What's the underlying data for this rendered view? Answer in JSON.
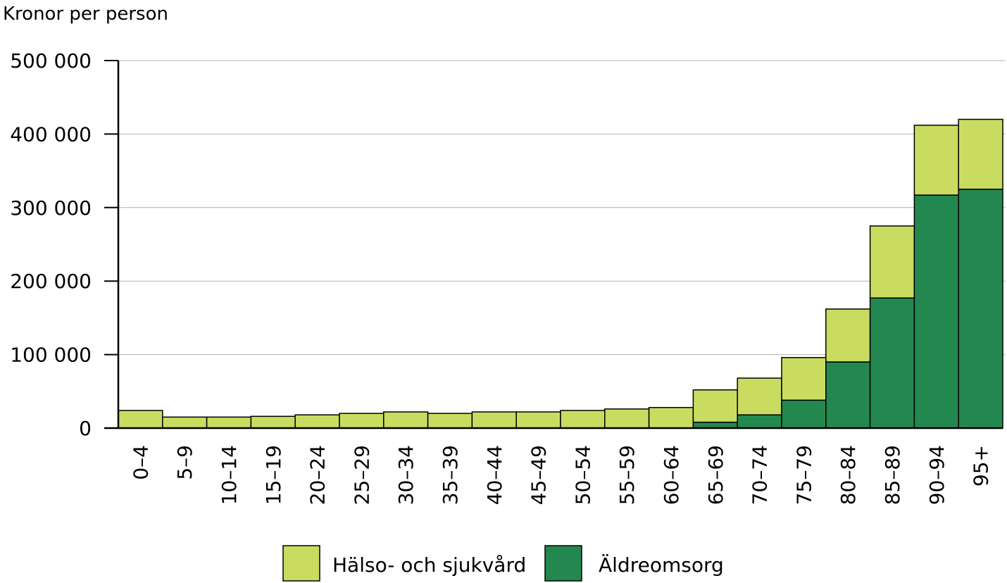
{
  "chart_data": {
    "type": "bar",
    "stacked": true,
    "ylabel": "Kronor per person",
    "ylim": [
      0,
      500000
    ],
    "yticks": [
      0,
      100000,
      200000,
      300000,
      400000,
      500000
    ],
    "ytick_labels": [
      "0",
      "100 000",
      "200 000",
      "300 000",
      "400 000",
      "500 000"
    ],
    "grid": true,
    "legend_position": "bottom",
    "categories": [
      "0–4",
      "5–9",
      "10–14",
      "15–19",
      "20–24",
      "25–29",
      "30–34",
      "35–39",
      "40–44",
      "45–49",
      "50–54",
      "55–59",
      "60–64",
      "65–69",
      "70–74",
      "75–79",
      "80–84",
      "85–89",
      "90–94",
      "95+"
    ],
    "series": [
      {
        "name": "Äldreomsorg",
        "color": "#23884f",
        "values": [
          0,
          0,
          0,
          0,
          0,
          0,
          0,
          0,
          0,
          0,
          0,
          0,
          0,
          8000,
          18000,
          38000,
          90000,
          177000,
          317000,
          325000
        ]
      },
      {
        "name": "Hälso- och sjukvård",
        "color": "#c9dc60",
        "values": [
          24000,
          15000,
          15000,
          16000,
          18000,
          20000,
          22000,
          20000,
          22000,
          22000,
          24000,
          26000,
          28000,
          44000,
          50000,
          58000,
          72000,
          98000,
          95000,
          95000
        ]
      }
    ],
    "legend_order": [
      "Hälso- och sjukvård",
      "Äldreomsorg"
    ]
  }
}
